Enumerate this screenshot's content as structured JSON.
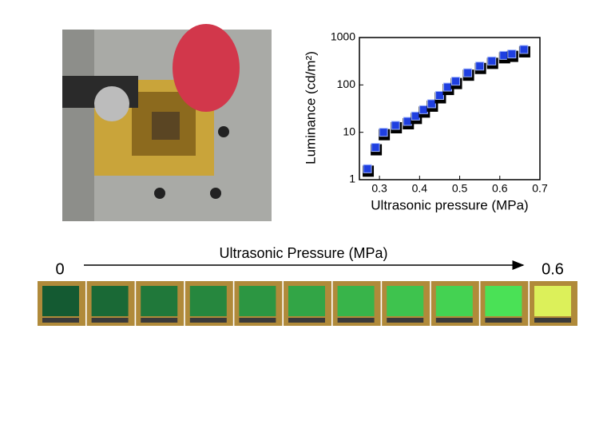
{
  "chart_data": {
    "type": "scatter",
    "xlabel": "Ultrasonic pressure (MPa)",
    "ylabel": "Luminance (cd/m²)",
    "x": [
      0.27,
      0.29,
      0.31,
      0.34,
      0.37,
      0.39,
      0.41,
      0.43,
      0.45,
      0.47,
      0.49,
      0.52,
      0.55,
      0.58,
      0.61,
      0.63,
      0.66
    ],
    "values": [
      1.7,
      4.8,
      10,
      14,
      17,
      22,
      30,
      40,
      60,
      90,
      120,
      180,
      250,
      320,
      420,
      450,
      560
    ],
    "color": "#1f3fe0",
    "log_y": true,
    "xlim": [
      0.25,
      0.7
    ],
    "xticks": [
      0.3,
      0.4,
      0.5,
      0.6,
      0.7
    ],
    "ylim": [
      1,
      1000
    ],
    "yticks": [
      1,
      10,
      100,
      1000
    ]
  },
  "strip": {
    "title": "Ultrasonic Pressure (MPa)",
    "start": "0",
    "end": "0.6"
  }
}
